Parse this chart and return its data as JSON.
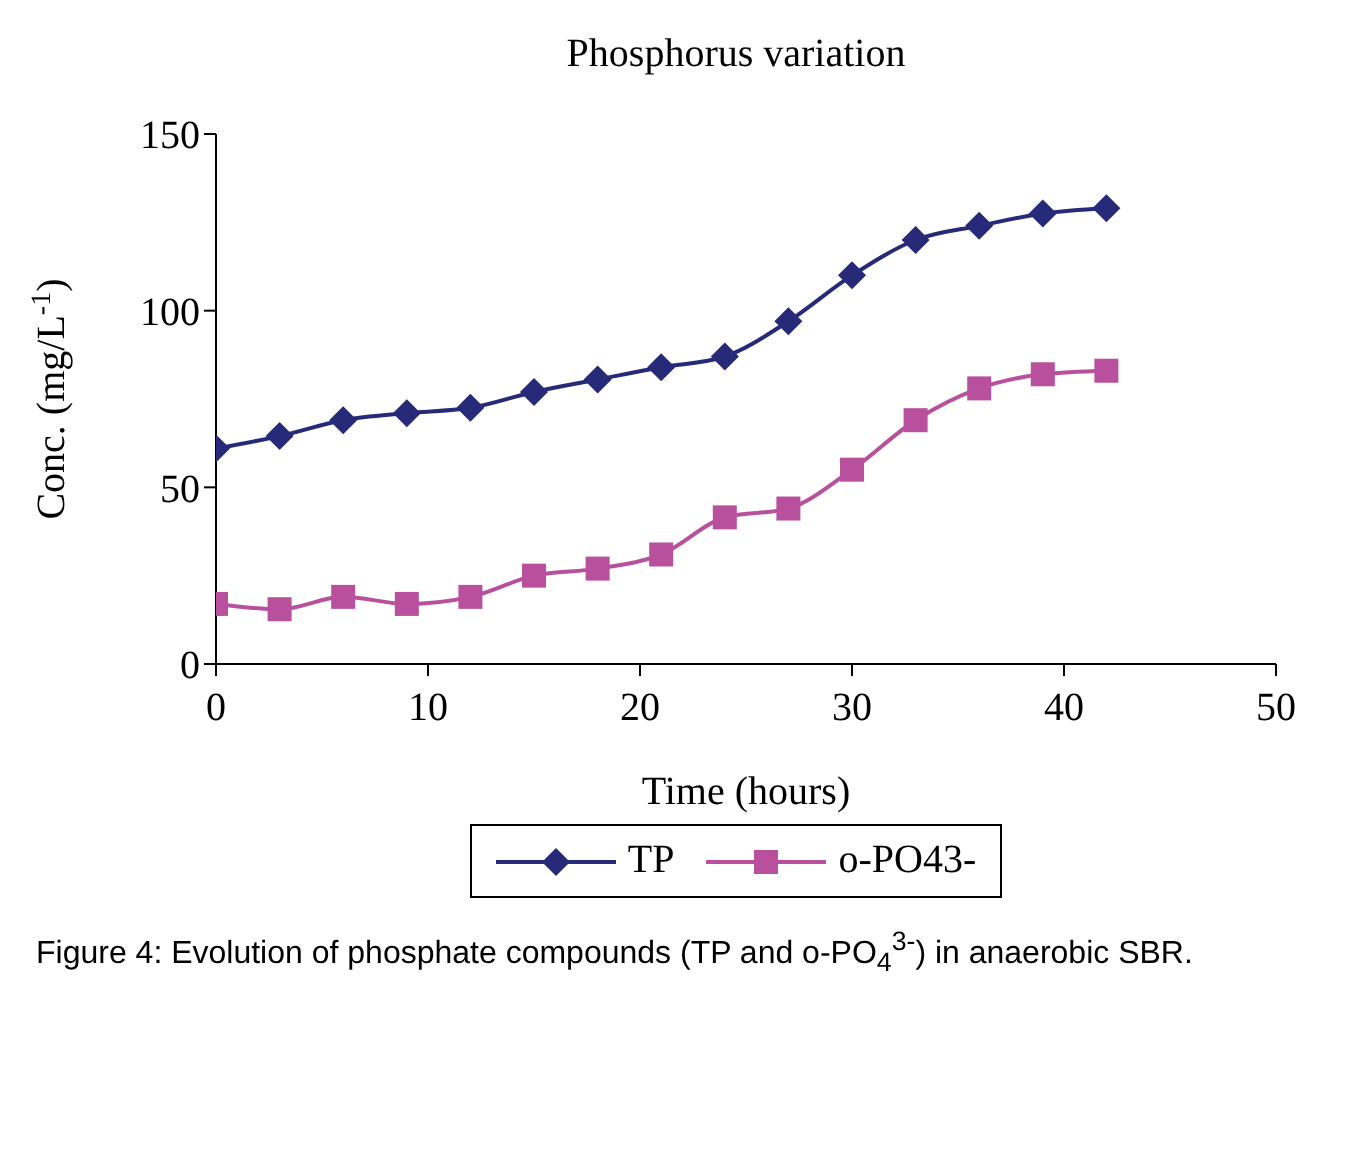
{
  "chart_data": {
    "type": "line",
    "title": "Phosphorus variation",
    "xlabel": "Time (hours)",
    "ylabel": "Conc. (mg/L$^{-1}$)",
    "x": [
      0,
      3,
      6,
      9,
      12,
      15,
      18,
      21,
      24,
      27,
      30,
      33,
      36,
      39,
      42
    ],
    "series": [
      {
        "name": "TP",
        "color": "#262a78",
        "marker": "diamond",
        "values": [
          61,
          64.5,
          69,
          71,
          72.5,
          77,
          80.5,
          84,
          87,
          97,
          110,
          120,
          124,
          127.5,
          129
        ]
      },
      {
        "name": "o-PO43-",
        "color": "#b8509e",
        "marker": "square",
        "values": [
          17,
          15.5,
          19,
          17,
          19,
          25,
          27,
          31,
          41.5,
          44,
          55,
          69,
          78,
          82,
          83
        ]
      }
    ],
    "xlim": [
      0,
      50
    ],
    "xticks": [
      0,
      10,
      20,
      30,
      40,
      50
    ],
    "ylim": [
      0,
      150
    ],
    "yticks": [
      0,
      50,
      100,
      150
    ],
    "grid": false,
    "legend": "bottom",
    "line_style": "solid",
    "annotations": [
      "Figure 4: Evolution of phosphate compounds (TP and o-PO$_{4}$$^{3-}$) in anaerobic SBR."
    ]
  }
}
